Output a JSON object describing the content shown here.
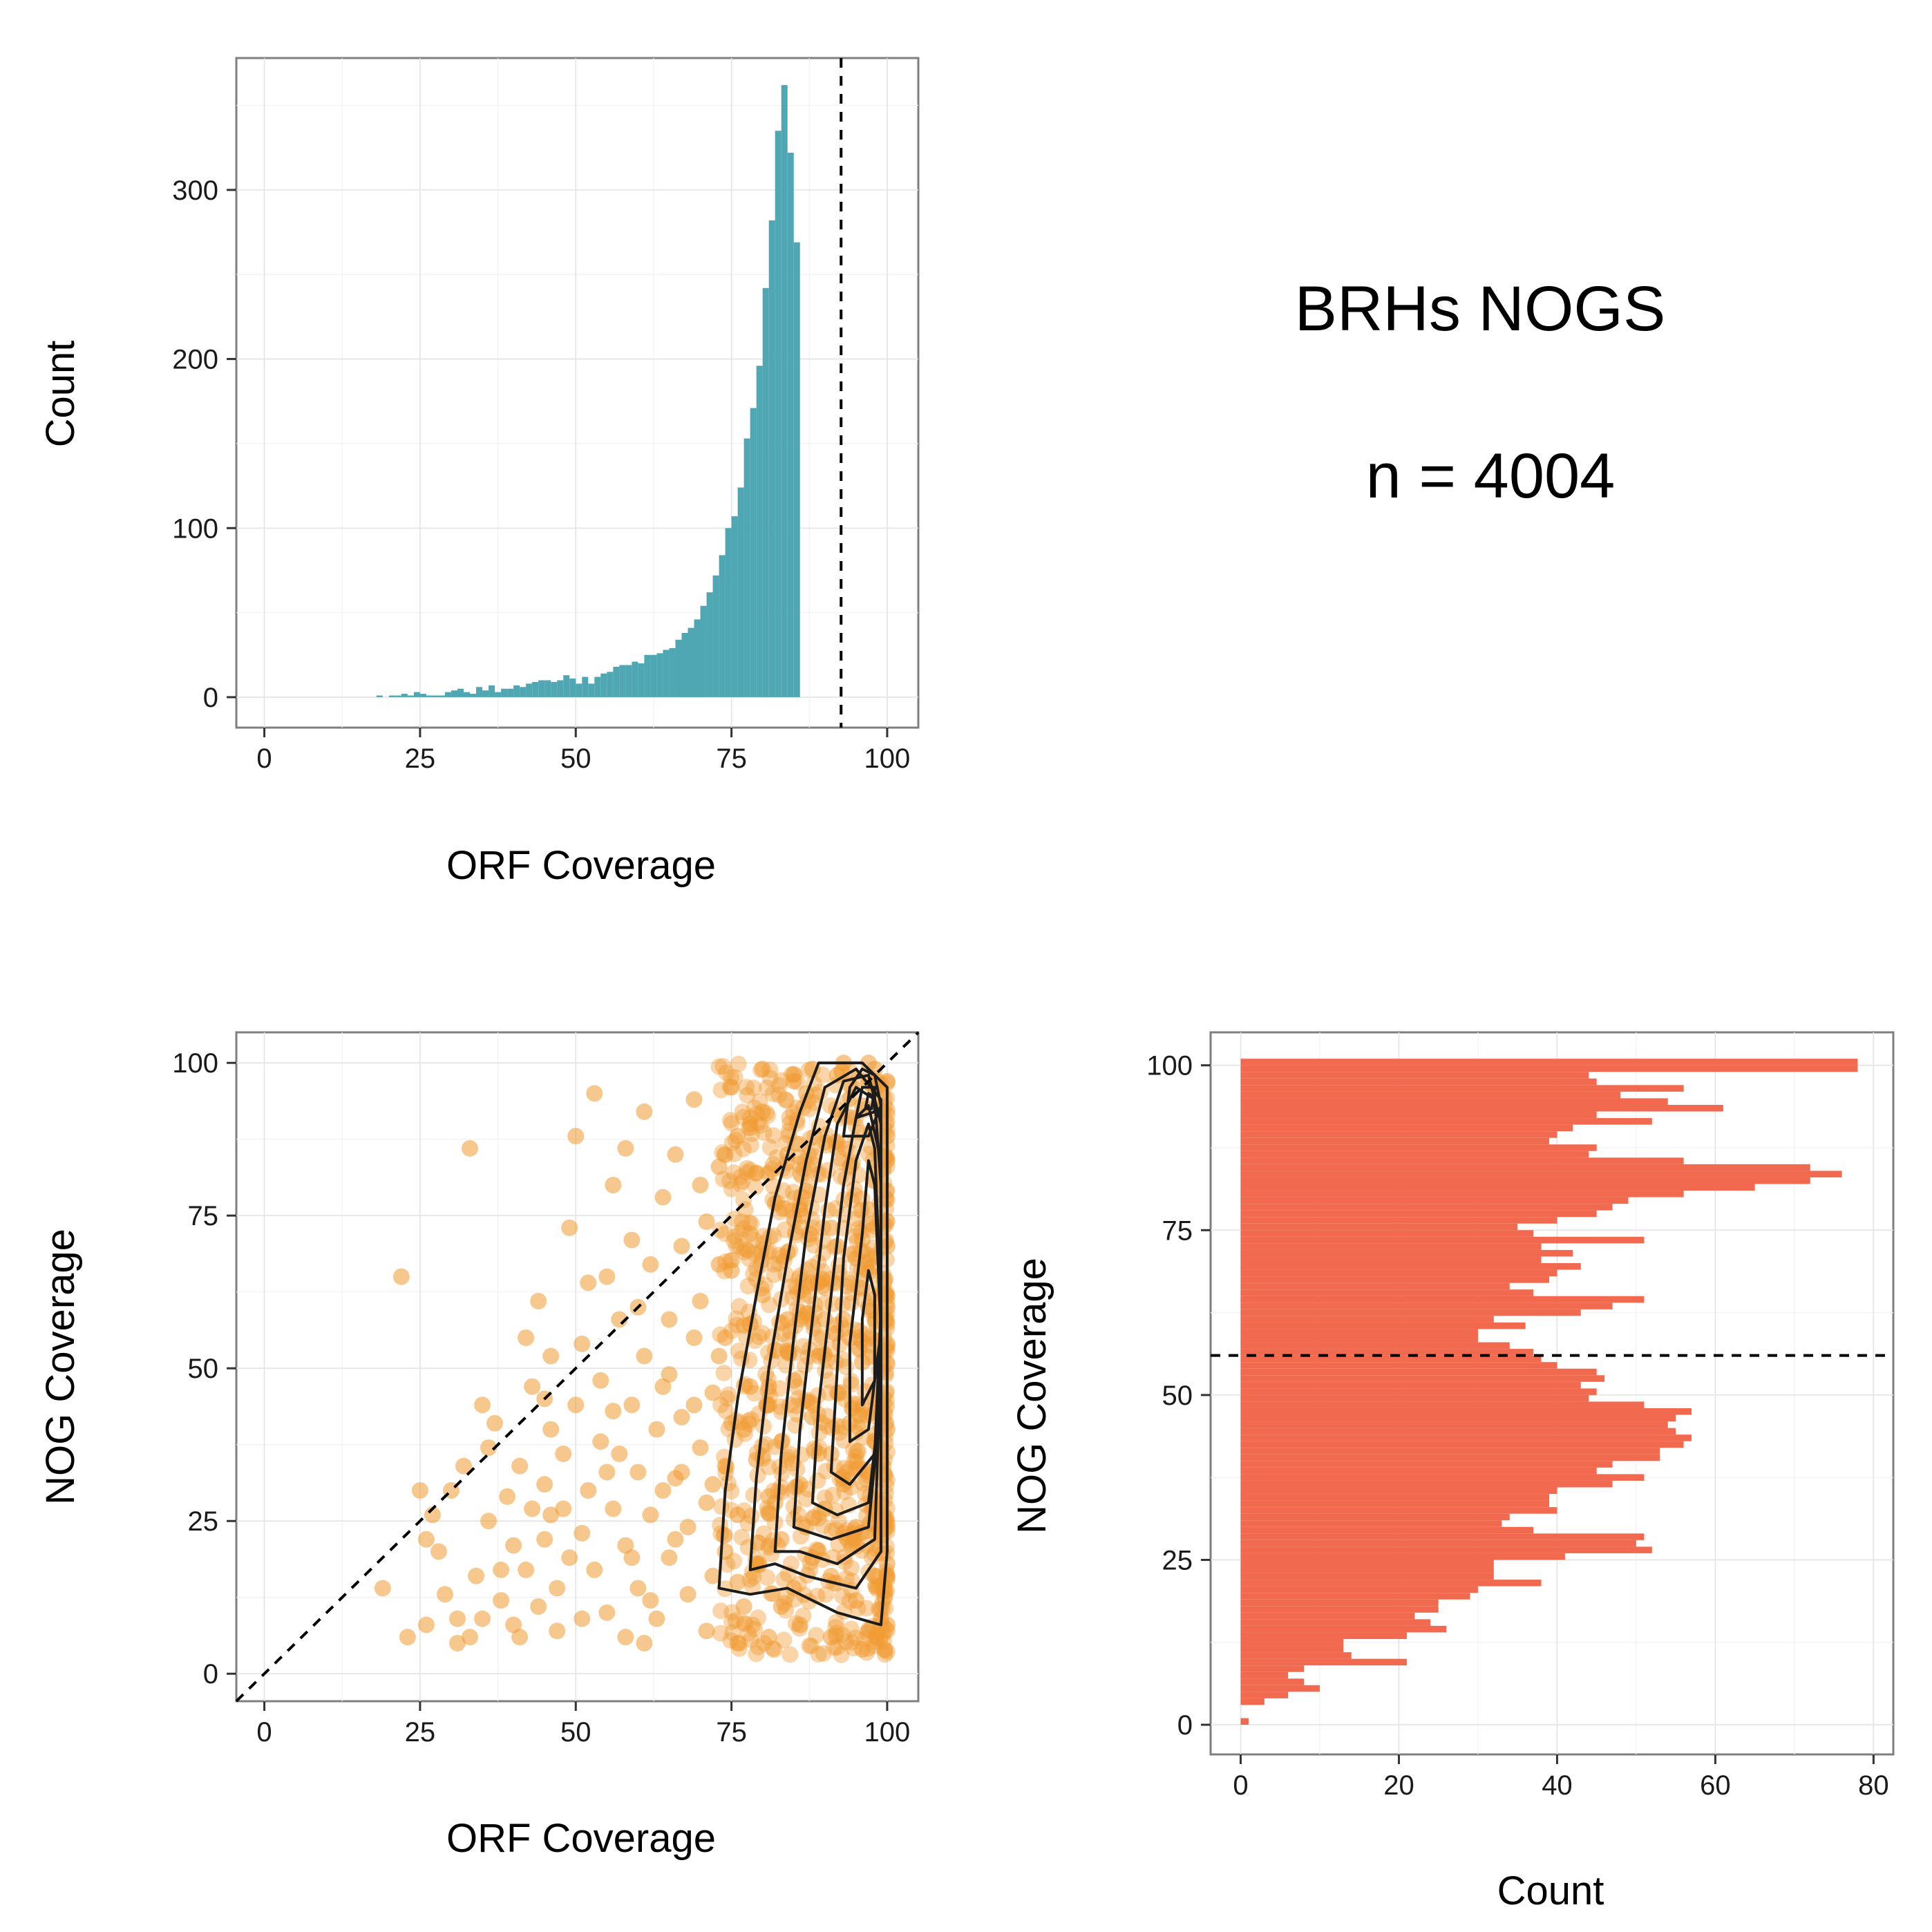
{
  "summary": {
    "title": "BRHs  NOGS",
    "n_label": "n =  4004"
  },
  "colors": {
    "hist_top": "#4fa7b4",
    "hist_right": "#f16a4f",
    "scatter": "#f19a32",
    "contour": "#1c1c1c",
    "grid": "#e3e3e3",
    "frame": "#7f7f7f"
  },
  "chart_data": [
    {
      "type": "bar",
      "xlabel": "ORF  Coverage",
      "ylabel": "Count",
      "xlim": [
        -4.5,
        105
      ],
      "ylim": [
        -18,
        378
      ],
      "xticks": [
        0,
        25,
        50,
        75,
        100
      ],
      "yticks": [
        0,
        100,
        200,
        300
      ],
      "bin_width": 1,
      "bin_start": 18,
      "values": [
        1,
        0,
        1,
        1,
        2,
        1,
        3,
        2,
        1,
        1,
        1,
        3,
        4,
        5,
        3,
        2,
        6,
        4,
        7,
        3,
        5,
        5,
        7,
        6,
        8,
        9,
        10,
        10,
        9,
        10,
        13,
        11,
        8,
        12,
        8,
        12,
        14,
        15,
        18,
        19,
        19,
        21,
        20,
        25,
        25,
        26,
        28,
        29,
        34,
        38,
        41,
        46,
        54,
        62,
        72,
        84,
        100,
        107,
        124,
        153,
        171,
        196,
        242,
        282,
        335,
        362,
        322,
        269
      ],
      "vline": 92.6,
      "grid": true
    },
    {
      "type": "scatter",
      "xlabel": "ORF  Coverage",
      "ylabel": "NOG  Coverage",
      "xlim": [
        -4.5,
        105
      ],
      "ylim": [
        -4.5,
        105
      ],
      "xticks": [
        0,
        25,
        50,
        75,
        100
      ],
      "yticks": [
        0,
        25,
        50,
        75,
        100
      ],
      "diagonal": [
        [
          -4.5,
          -4.5
        ],
        [
          105,
          105
        ]
      ],
      "points": [
        [
          22,
          65
        ],
        [
          33,
          86
        ],
        [
          19,
          14
        ],
        [
          23,
          6
        ],
        [
          25,
          30
        ],
        [
          26,
          8
        ],
        [
          27,
          26
        ],
        [
          28,
          20
        ],
        [
          29,
          13
        ],
        [
          30,
          30
        ],
        [
          31,
          9
        ],
        [
          32,
          34
        ],
        [
          33,
          6
        ],
        [
          34,
          16
        ],
        [
          35,
          9
        ],
        [
          35,
          44
        ],
        [
          36,
          25
        ],
        [
          37,
          41
        ],
        [
          38,
          17
        ],
        [
          38,
          12
        ],
        [
          39,
          29
        ],
        [
          40,
          8
        ],
        [
          40,
          21
        ],
        [
          41,
          34
        ],
        [
          42,
          55
        ],
        [
          42,
          17
        ],
        [
          43,
          47
        ],
        [
          43,
          27
        ],
        [
          44,
          61
        ],
        [
          44,
          11
        ],
        [
          45,
          31
        ],
        [
          45,
          22
        ],
        [
          46,
          40
        ],
        [
          46,
          52
        ],
        [
          47,
          14
        ],
        [
          47,
          7
        ],
        [
          48,
          27
        ],
        [
          48,
          36
        ],
        [
          49,
          73
        ],
        [
          49,
          19
        ],
        [
          50,
          88
        ],
        [
          50,
          44
        ],
        [
          51,
          54
        ],
        [
          51,
          23
        ],
        [
          52,
          64
        ],
        [
          52,
          30
        ],
        [
          53,
          95
        ],
        [
          53,
          17
        ],
        [
          54,
          48
        ],
        [
          54,
          38
        ],
        [
          55,
          65
        ],
        [
          55,
          10
        ],
        [
          56,
          80
        ],
        [
          56,
          27
        ],
        [
          57,
          36
        ],
        [
          57,
          58
        ],
        [
          58,
          86
        ],
        [
          58,
          21
        ],
        [
          59,
          44
        ],
        [
          59,
          71
        ],
        [
          60,
          33
        ],
        [
          60,
          14
        ],
        [
          61,
          52
        ],
        [
          61,
          92
        ],
        [
          62,
          26
        ],
        [
          62,
          67
        ],
        [
          63,
          40
        ],
        [
          63,
          9
        ],
        [
          64,
          78
        ],
        [
          64,
          47
        ],
        [
          65,
          19
        ],
        [
          65,
          58
        ],
        [
          66,
          85
        ],
        [
          66,
          32
        ],
        [
          67,
          42
        ],
        [
          67,
          70
        ],
        [
          68,
          24
        ],
        [
          68,
          13
        ],
        [
          69,
          55
        ],
        [
          69,
          94
        ],
        [
          70,
          37
        ],
        [
          70,
          61
        ],
        [
          71,
          28
        ],
        [
          71,
          74
        ],
        [
          72,
          46
        ],
        [
          72,
          16
        ],
        [
          73,
          83
        ],
        [
          73,
          52
        ],
        [
          74,
          34
        ],
        [
          74,
          20
        ],
        [
          75,
          66
        ],
        [
          75,
          41
        ],
        [
          76,
          88
        ],
        [
          76,
          26
        ],
        [
          77,
          57
        ],
        [
          77,
          11
        ],
        [
          78,
          47
        ],
        [
          78,
          72
        ],
        [
          79,
          35
        ],
        [
          79,
          18
        ],
        [
          80,
          62
        ],
        [
          80,
          92
        ],
        [
          81,
          29
        ],
        [
          81,
          44
        ],
        [
          82,
          77
        ],
        [
          82,
          53
        ],
        [
          83,
          22
        ],
        [
          83,
          38
        ],
        [
          84,
          69
        ],
        [
          84,
          85
        ],
        [
          85,
          14
        ],
        [
          85,
          48
        ],
        [
          86,
          58
        ],
        [
          86,
          31
        ],
        [
          87,
          79
        ],
        [
          87,
          95
        ],
        [
          88,
          42
        ],
        [
          88,
          19
        ],
        [
          89,
          64
        ],
        [
          89,
          52
        ],
        [
          90,
          27
        ],
        [
          90,
          87
        ],
        [
          91,
          73
        ],
        [
          91,
          36
        ],
        [
          92,
          46
        ],
        [
          92,
          98
        ],
        [
          93,
          58
        ],
        [
          93,
          23
        ],
        [
          94,
          83
        ],
        [
          94,
          41
        ],
        [
          95,
          68
        ],
        [
          95,
          12
        ],
        [
          96,
          51
        ],
        [
          96,
          93
        ],
        [
          97,
          33
        ],
        [
          97,
          76
        ],
        [
          98,
          45
        ],
        [
          98,
          99
        ],
        [
          99,
          62
        ],
        [
          99,
          28
        ],
        [
          100,
          54
        ],
        [
          100,
          88
        ],
        [
          100,
          18
        ],
        [
          100,
          97
        ],
        [
          26,
          22
        ],
        [
          31,
          5
        ],
        [
          36,
          37
        ],
        [
          41,
          6
        ],
        [
          46,
          26
        ],
        [
          51,
          9
        ],
        [
          56,
          43
        ],
        [
          61,
          5
        ],
        [
          66,
          22
        ],
        [
          71,
          7
        ],
        [
          76,
          5
        ],
        [
          81,
          6
        ],
        [
          86,
          8
        ],
        [
          91,
          6
        ],
        [
          96,
          4
        ],
        [
          99,
          9
        ],
        [
          45,
          45
        ],
        [
          55,
          33
        ],
        [
          60,
          60
        ],
        [
          70,
          80
        ],
        [
          65,
          49
        ],
        [
          75,
          96
        ],
        [
          80,
          99
        ],
        [
          85,
          97
        ],
        [
          88,
          99
        ],
        [
          93,
          100
        ],
        [
          97,
          100
        ],
        [
          79,
          82
        ],
        [
          83,
          11
        ],
        [
          87,
          24
        ],
        [
          91,
          16
        ],
        [
          95,
          24
        ],
        [
          72,
          31
        ],
        [
          74,
          55
        ],
        [
          77,
          40
        ],
        [
          82,
          28
        ],
        [
          84,
          58
        ],
        [
          89,
          36
        ],
        [
          92,
          70
        ],
        [
          94,
          55
        ],
        [
          97,
          60
        ],
        [
          98,
          38
        ],
        [
          99,
          80
        ],
        [
          100,
          70
        ],
        [
          100,
          40
        ],
        [
          100,
          8
        ],
        [
          78,
          90
        ],
        [
          73,
          67
        ],
        [
          69,
          44
        ],
        [
          64,
          30
        ],
        [
          59,
          19
        ],
        [
          58,
          6
        ],
        [
          62,
          12
        ],
        [
          67,
          33
        ],
        [
          76,
          15
        ],
        [
          81,
          47
        ],
        [
          86,
          76
        ],
        [
          90,
          58
        ],
        [
          93,
          31
        ],
        [
          96,
          71
        ],
        [
          98,
          16
        ],
        [
          100,
          60
        ]
      ]
    },
    {
      "type": "bar",
      "orientation": "horizontal",
      "xlabel": "Count",
      "ylabel": "NOG  Coverage",
      "xlim": [
        -3.8,
        82.5
      ],
      "ylim": [
        -4.5,
        105
      ],
      "xticks": [
        0,
        20,
        40,
        60,
        80
      ],
      "yticks": [
        0,
        25,
        50,
        75,
        100
      ],
      "bin_width": 1,
      "bin_start": 0,
      "values": [
        1,
        0,
        0,
        3,
        6,
        10,
        8,
        6,
        8,
        21,
        14,
        13,
        13,
        21,
        26,
        24,
        22,
        25,
        25,
        29,
        30,
        38,
        32,
        32,
        32,
        41,
        52,
        50,
        51,
        37,
        33,
        34,
        40,
        39,
        39,
        40,
        47,
        51,
        45,
        47,
        53,
        53,
        56,
        57,
        55,
        54,
        55,
        57,
        51,
        44,
        45,
        43,
        46,
        45,
        40,
        38,
        37,
        34,
        30,
        30,
        36,
        32,
        43,
        47,
        51,
        37,
        34,
        39,
        40,
        43,
        38,
        42,
        38,
        51,
        37,
        35,
        40,
        45,
        47,
        49,
        56,
        65,
        72,
        76,
        72,
        56,
        44,
        45,
        39,
        40,
        42,
        52,
        45,
        61,
        54,
        48,
        56,
        45,
        44,
        78,
        78
      ]
    }
  ]
}
